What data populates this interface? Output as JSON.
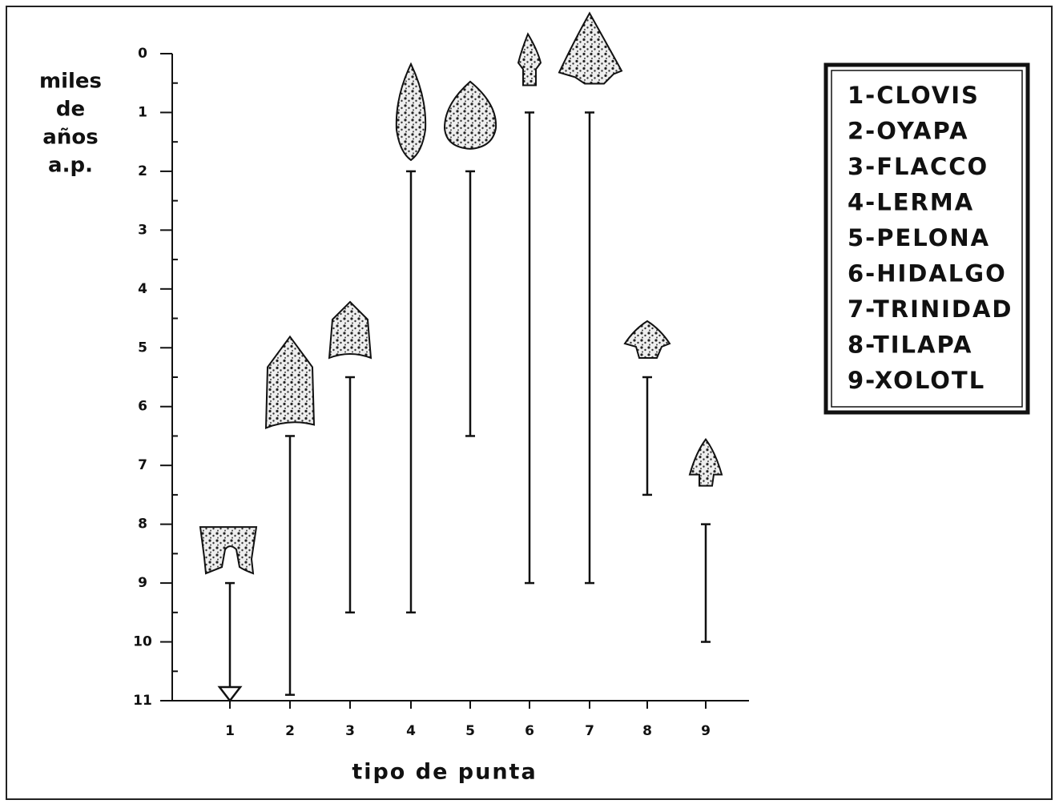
{
  "chart_data": {
    "type": "range",
    "categories": [
      "1",
      "2",
      "3",
      "4",
      "5",
      "6",
      "7",
      "8",
      "9"
    ],
    "start": [
      9,
      6.5,
      5.5,
      2,
      2,
      1,
      1,
      5.5,
      8
    ],
    "end": [
      11,
      10.9,
      9.5,
      9.5,
      6.5,
      9,
      9,
      7.5,
      10
    ],
    "ylim": [
      0,
      11
    ],
    "yticks": [
      0,
      1,
      2,
      3,
      4,
      5,
      6,
      7,
      8,
      9,
      10,
      11
    ],
    "minor_yticks": [
      0.5,
      1.5,
      2.5,
      3.5,
      4.5,
      5.5,
      6.5,
      7.5,
      8.5,
      9.5,
      10.5
    ],
    "y_inverted": true,
    "ylabel": [
      "miles",
      "de",
      "años",
      "a.p."
    ],
    "xlabel": "tipo de punta",
    "legend": [
      "1-CLOVIS",
      "2-OYAPA",
      "3-FLACCO",
      "4-LERMA",
      "5-PELONA",
      "6-HIDALGO",
      "7-TRINIDAD",
      "8-TILAPA",
      "9-XOLOTL"
    ],
    "color": "#111111"
  }
}
